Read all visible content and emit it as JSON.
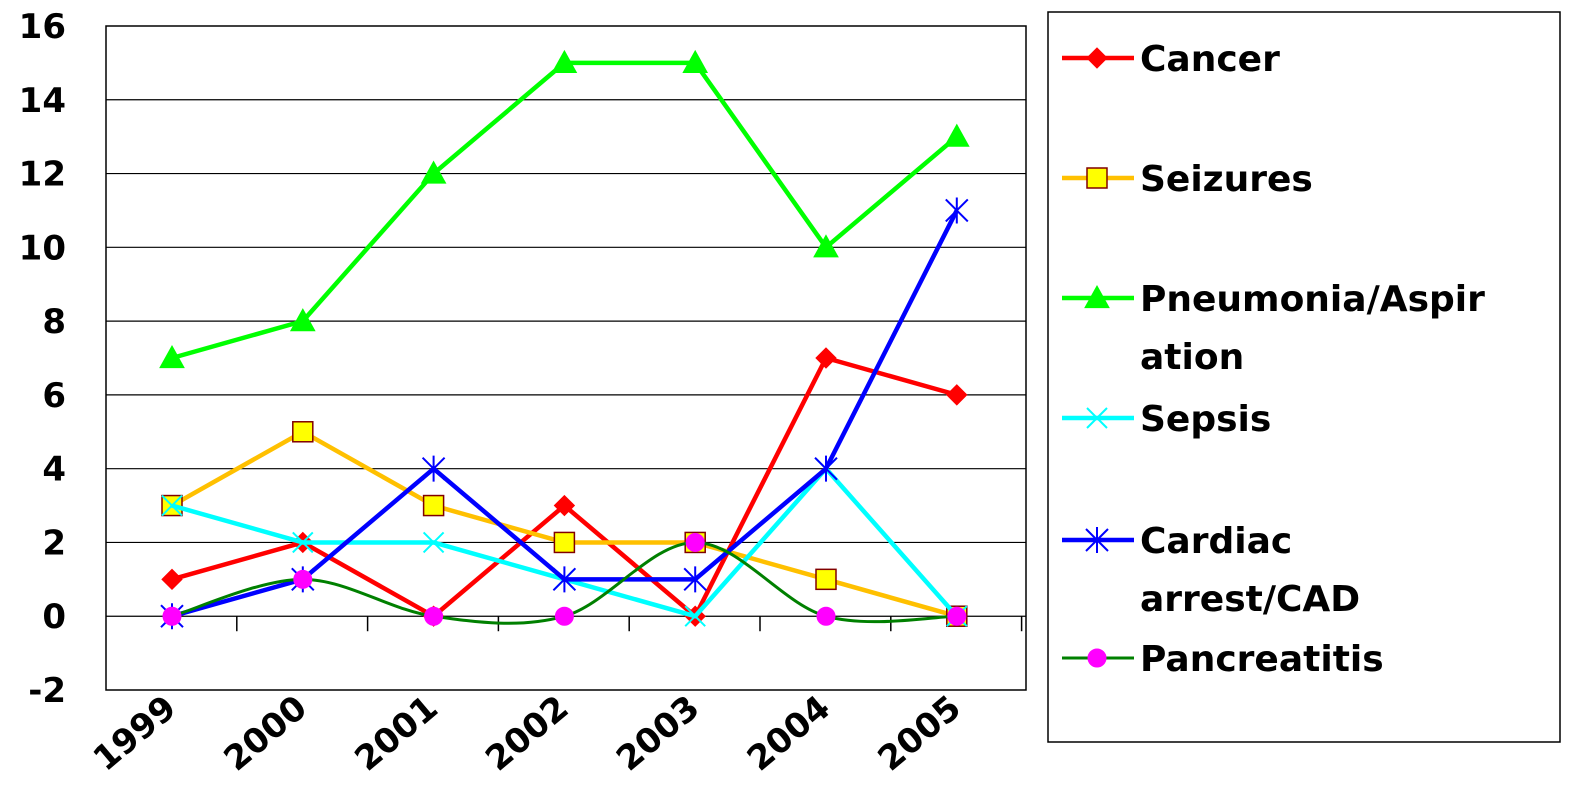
{
  "chart_data": {
    "type": "line",
    "title": "",
    "xlabel": "",
    "ylabel": "",
    "categories": [
      "1999",
      "2000",
      "2001",
      "2002",
      "2003",
      "2004",
      "2005"
    ],
    "ylim": [
      -2,
      16
    ],
    "yticks": [
      "16",
      "14",
      "12",
      "10",
      "8",
      "6",
      "4",
      "2",
      "0",
      "-2"
    ],
    "ytick_values": [
      16,
      14,
      12,
      10,
      8,
      6,
      4,
      2,
      0,
      -2
    ],
    "grid": true,
    "legend_position": "right",
    "series": [
      {
        "name": "Cancer",
        "values": [
          1,
          2,
          0,
          3,
          0,
          7,
          6
        ],
        "color": "#ff0000",
        "marker": "diamond",
        "smooth": false
      },
      {
        "name": "Seizures",
        "values": [
          3,
          5,
          3,
          2,
          2,
          1,
          0
        ],
        "color": "#ffc000",
        "marker": "square",
        "marker_fill": "#ffff00",
        "smooth": false
      },
      {
        "name": "Pneumonia/Aspiration",
        "label_lines": [
          "Pneumonia/Aspir",
          "ation"
        ],
        "values": [
          7,
          8,
          12,
          15,
          15,
          10,
          13
        ],
        "color": "#00ff00",
        "marker": "triangle",
        "smooth": false
      },
      {
        "name": "Sepsis",
        "values": [
          3,
          2,
          2,
          1,
          0,
          4,
          0
        ],
        "color": "#00ffff",
        "marker": "x",
        "smooth": false
      },
      {
        "name": "Cardiac arrest/CAD",
        "label_lines": [
          "Cardiac",
          "arrest/CAD"
        ],
        "values": [
          0,
          1,
          4,
          1,
          1,
          4,
          11
        ],
        "color": "#0000ff",
        "marker": "star",
        "smooth": false
      },
      {
        "name": "Pancreatitis",
        "values": [
          0,
          1,
          0,
          0,
          2,
          0,
          0
        ],
        "color": "#008000",
        "marker": "circle",
        "marker_fill": "#ff00ff",
        "smooth": true
      }
    ]
  }
}
